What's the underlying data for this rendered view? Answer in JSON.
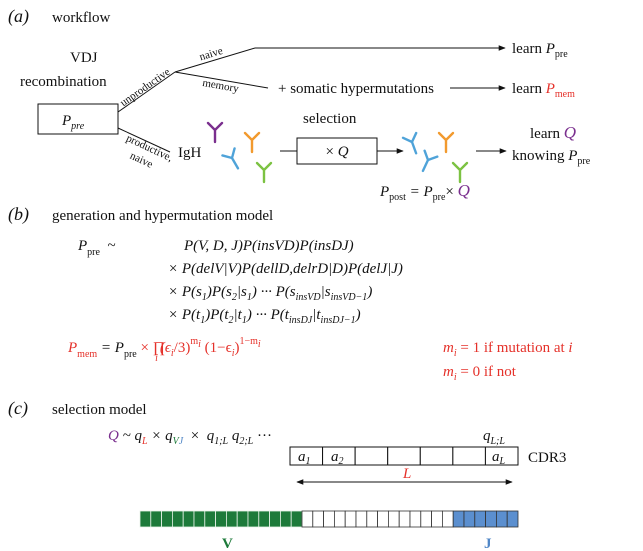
{
  "panel_a": {
    "label": "(a)",
    "title": "workflow",
    "vdj": "VDJ",
    "recombination": "recombination",
    "box": [
      "P",
      "pre"
    ],
    "edges": {
      "unproductive": "unproductive",
      "naive": "naive",
      "memory": "memory",
      "productive": "productive,",
      "productive_naive": "naive"
    },
    "hypermutations": "+ somatic hypermutations",
    "learn_pre": [
      "learn ",
      "P",
      "pre"
    ],
    "learn_mem": [
      "learn ",
      "P",
      "mem"
    ],
    "igh": "IgH",
    "selection": "selection",
    "selection_box": [
      "× ",
      "Q"
    ],
    "learn_q": [
      "learn ",
      "Q"
    ],
    "knowing": [
      "knowing ",
      "P",
      "pre"
    ],
    "post": [
      "P",
      "post",
      " = P",
      "pre",
      "× ",
      "Q"
    ]
  },
  "panel_b": {
    "label": "(b)",
    "title": "generation and hypermutation model",
    "lhs": [
      "P",
      "pre",
      "  ~"
    ],
    "line1": "P(V, D, J)P(insVD)P(insDJ)",
    "line2": "× P(delV|V)P(dellD,delrD|D)P(delJ|J)",
    "line3": [
      "× P(s",
      "1",
      ")P(s",
      "2",
      "|s",
      "1",
      ") ··· P(s",
      "insVD",
      "|s",
      "insVD−1",
      ")"
    ],
    "line4": [
      "× P(t",
      "1",
      ")P(t",
      "2",
      "|t",
      "1",
      ") ··· P(t",
      "insDJ",
      "|t",
      "insDJ−1",
      ")"
    ],
    "mem": [
      "P",
      "mem",
      " = P",
      "pre",
      " × ∏",
      "i",
      "(ϵ",
      "i",
      "/3)",
      "m",
      "i",
      " (1−ϵ",
      "i",
      ")",
      "1−m",
      "i"
    ],
    "m1": [
      "m",
      "i",
      " = 1 if mutation at ",
      "i"
    ],
    "m0": [
      "m",
      "i",
      " = 0 if not"
    ]
  },
  "panel_c": {
    "label": "(c)",
    "title": "selection model",
    "formula": [
      "Q",
      " ~ q",
      "L",
      " × q",
      "V",
      "J",
      "  ×  ",
      "q",
      "1;L",
      " q",
      "2;L",
      " ···"
    ],
    "q_last": [
      "q",
      "L;L"
    ],
    "cells": [
      [
        "a",
        "1"
      ],
      [
        "a",
        "2"
      ],
      [
        "a",
        "L"
      ]
    ],
    "cdr3": "CDR3",
    "length": "L",
    "v": "V",
    "j": "J"
  }
}
